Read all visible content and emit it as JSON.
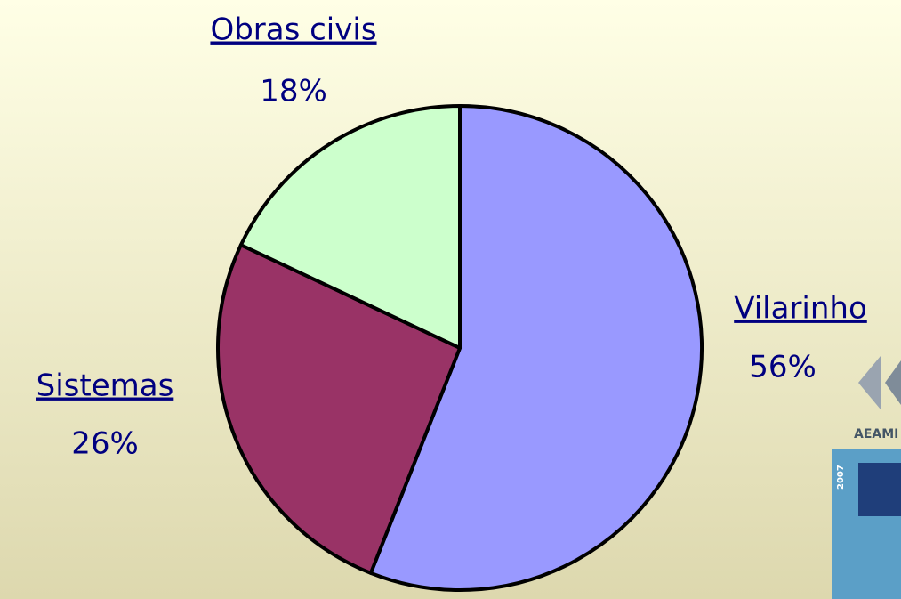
{
  "chart_data": {
    "type": "pie",
    "categories": [
      "Vilarinho",
      "Sistemas",
      "Obras civis"
    ],
    "values": [
      56,
      26,
      18
    ],
    "value_labels": [
      "56%",
      "26%",
      "18%"
    ],
    "colors": [
      "#9999ff",
      "#993366",
      "#ccffcc"
    ]
  },
  "logo": {
    "text": "AEAMI",
    "year": "2007"
  }
}
